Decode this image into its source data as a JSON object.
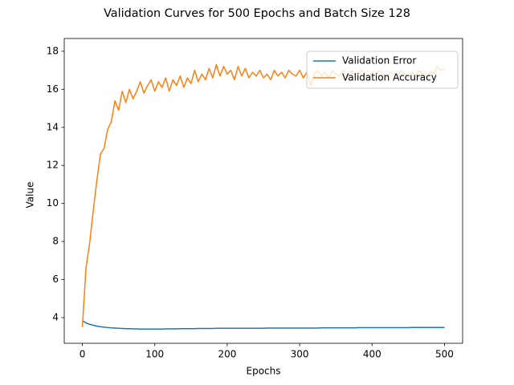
{
  "chart_data": {
    "type": "line",
    "title": "Validation Curves for 500 Epochs and Batch Size 128",
    "xlabel": "Epochs",
    "ylabel": "Value",
    "x": [
      0,
      5,
      10,
      15,
      20,
      25,
      30,
      35,
      40,
      45,
      50,
      55,
      60,
      65,
      70,
      75,
      80,
      85,
      90,
      95,
      100,
      105,
      110,
      115,
      120,
      125,
      130,
      135,
      140,
      145,
      150,
      155,
      160,
      165,
      170,
      175,
      180,
      185,
      190,
      195,
      200,
      205,
      210,
      215,
      220,
      225,
      230,
      235,
      240,
      245,
      250,
      255,
      260,
      265,
      270,
      275,
      280,
      285,
      290,
      295,
      300,
      305,
      310,
      315,
      320,
      325,
      330,
      335,
      340,
      345,
      350,
      355,
      360,
      365,
      370,
      375,
      380,
      385,
      390,
      395,
      400,
      405,
      410,
      415,
      420,
      425,
      430,
      435,
      440,
      445,
      450,
      455,
      460,
      465,
      470,
      475,
      480,
      485,
      490,
      495,
      500
    ],
    "series": [
      {
        "name": "Validation Error",
        "color": "#1f77b4",
        "values": [
          3.85,
          3.72,
          3.65,
          3.6,
          3.55,
          3.52,
          3.5,
          3.48,
          3.46,
          3.45,
          3.44,
          3.43,
          3.42,
          3.42,
          3.41,
          3.41,
          3.4,
          3.4,
          3.4,
          3.4,
          3.4,
          3.4,
          3.4,
          3.41,
          3.41,
          3.41,
          3.41,
          3.42,
          3.42,
          3.42,
          3.42,
          3.42,
          3.43,
          3.43,
          3.43,
          3.43,
          3.43,
          3.44,
          3.44,
          3.44,
          3.44,
          3.44,
          3.44,
          3.44,
          3.44,
          3.44,
          3.44,
          3.44,
          3.44,
          3.44,
          3.44,
          3.45,
          3.45,
          3.45,
          3.45,
          3.45,
          3.45,
          3.45,
          3.45,
          3.45,
          3.45,
          3.45,
          3.45,
          3.45,
          3.45,
          3.45,
          3.46,
          3.46,
          3.46,
          3.46,
          3.46,
          3.46,
          3.46,
          3.46,
          3.46,
          3.46,
          3.47,
          3.47,
          3.47,
          3.47,
          3.47,
          3.47,
          3.47,
          3.47,
          3.47,
          3.47,
          3.47,
          3.47,
          3.47,
          3.47,
          3.47,
          3.48,
          3.48,
          3.48,
          3.48,
          3.48,
          3.48,
          3.48,
          3.48,
          3.48,
          3.48
        ]
      },
      {
        "name": "Validation Accuracy",
        "color": "#ff7f0e",
        "values": [
          3.5,
          6.6,
          7.9,
          9.6,
          11.2,
          12.6,
          12.9,
          13.9,
          14.3,
          15.4,
          14.9,
          15.9,
          15.3,
          16.0,
          15.5,
          15.9,
          16.4,
          15.8,
          16.2,
          16.5,
          15.9,
          16.4,
          16.1,
          16.6,
          15.9,
          16.5,
          16.2,
          16.7,
          16.1,
          16.6,
          16.3,
          17.0,
          16.4,
          16.8,
          16.5,
          17.1,
          16.6,
          17.3,
          16.7,
          17.2,
          16.8,
          17.0,
          16.5,
          17.2,
          16.7,
          17.1,
          16.6,
          16.9,
          16.7,
          17.0,
          16.6,
          16.8,
          16.5,
          17.0,
          16.7,
          16.9,
          16.6,
          17.0,
          16.8,
          16.7,
          17.0,
          16.6,
          16.9,
          16.2,
          16.8,
          17.0,
          16.7,
          16.9,
          16.6,
          17.0,
          16.8,
          16.7,
          17.0,
          16.6,
          16.9,
          16.8,
          16.7,
          17.0,
          16.8,
          16.6,
          16.9,
          16.7,
          17.0,
          16.8,
          16.6,
          16.9,
          16.8,
          16.7,
          17.0,
          16.8,
          16.6,
          16.9,
          16.7,
          17.0,
          16.8,
          16.6,
          16.9,
          16.8,
          17.2,
          17.0,
          17.1
        ]
      }
    ],
    "xlim": [
      -25,
      525
    ],
    "xticks": [
      0,
      100,
      200,
      300,
      400,
      500
    ],
    "ylim": [
      2.65,
      18.67
    ],
    "yticks": [
      4,
      6,
      8,
      10,
      12,
      14,
      16,
      18
    ],
    "grid": false,
    "legend": "upper right"
  }
}
